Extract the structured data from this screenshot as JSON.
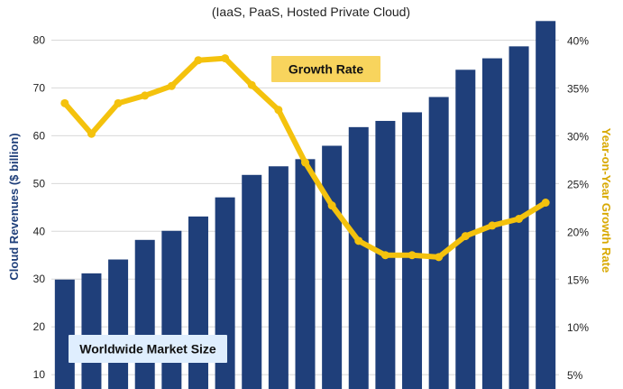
{
  "chart_data": {
    "type": "bar",
    "subtitle": "(IaaS, PaaS, Hosted Private Cloud)",
    "ylabel": "Cloud Revenues ($ billion)",
    "y2label": "Year-on-Year Growth Rate",
    "ylim": [
      7,
      85
    ],
    "y2lim": [
      3.6,
      42.6
    ],
    "yticks": [
      10,
      20,
      30,
      40,
      50,
      60,
      70,
      80
    ],
    "y2ticks": [
      "5%",
      "10%",
      "15%",
      "20%",
      "25%",
      "30%",
      "35%",
      "40%"
    ],
    "y2tick_values": [
      5,
      10,
      15,
      20,
      25,
      30,
      35,
      40
    ],
    "series": [
      {
        "name": "Worldwide Market Size",
        "type": "bar",
        "axis": "left",
        "color": "#1f3f7a",
        "values": [
          29.9,
          31.2,
          34.1,
          38.2,
          40.1,
          43.1,
          47.1,
          51.8,
          53.6,
          55.1,
          57.9,
          61.8,
          63.1,
          64.9,
          68.1,
          73.8,
          76.2,
          78.7,
          84.0
        ]
      },
      {
        "name": "Growth Rate",
        "type": "line",
        "axis": "right",
        "color": "#f4c20d",
        "values": [
          33.5,
          30.3,
          33.5,
          34.3,
          35.3,
          38.0,
          38.2,
          35.4,
          32.8,
          27.3,
          22.8,
          19.1,
          17.6,
          17.6,
          17.4,
          19.6,
          20.7,
          21.4,
          23.1
        ]
      }
    ],
    "labels": {
      "growth_rate": "Growth Rate",
      "market_size": "Worldwide Market Size"
    }
  }
}
